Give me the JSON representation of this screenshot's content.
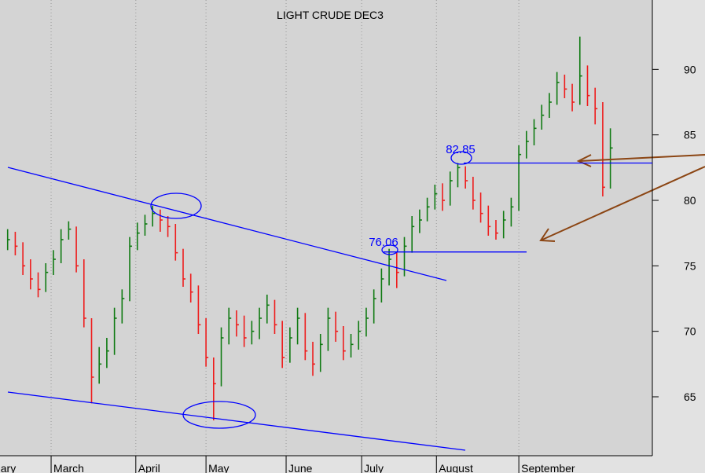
{
  "chart_data": {
    "type": "ohlc",
    "title": "LIGHT CRUDE DEC3",
    "up_color": "#0f7a12",
    "down_color": "#ee1c1c",
    "line_color": "#0000ff",
    "arrow_color": "#8b4513",
    "ylim": [
      60.5,
      95.3
    ],
    "yticks": [
      65,
      70,
      75,
      80,
      85,
      90
    ],
    "xlim": [
      -1,
      84.5
    ],
    "xticks": [
      {
        "value": -5,
        "label": "February"
      },
      {
        "value": 5.7,
        "label": "March"
      },
      {
        "value": 16.8,
        "label": "April"
      },
      {
        "value": 26,
        "label": "May"
      },
      {
        "value": 36.5,
        "label": "June"
      },
      {
        "value": 46.4,
        "label": "July"
      },
      {
        "value": 56.2,
        "label": "August"
      },
      {
        "value": 67,
        "label": "September"
      }
    ],
    "grid": true,
    "closes": [
      77.0,
      76.5,
      75.0,
      74.0,
      73.2,
      74.5,
      75.5,
      77.0,
      77.8,
      75.0,
      71.0,
      66.5,
      67.5,
      68.5,
      71.0,
      72.5,
      76.5,
      77.5,
      78.2,
      79.0,
      78.5,
      78.0,
      76.0,
      74.0,
      73.0,
      70.5,
      68.0,
      66.0,
      69.5,
      71.0,
      70.5,
      69.5,
      70.0,
      71.0,
      72.0,
      70.5,
      68.0,
      69.5,
      71.0,
      68.5,
      67.5,
      69.0,
      71.0,
      70.0,
      68.5,
      69.0,
      70.0,
      71.0,
      72.5,
      74.0,
      75.5,
      74.5,
      76.5,
      78.0,
      78.5,
      79.5,
      80.5,
      80.0,
      81.5,
      82.5,
      81.5,
      80.0,
      79.0,
      78.0,
      77.5,
      78.5,
      79.5,
      83.5,
      84.5,
      85.5,
      86.5,
      87.5,
      89.0,
      88.5,
      87.5,
      89.5,
      88.0,
      87.0,
      81.0,
      84.0
    ],
    "highs": [
      77.8,
      77.6,
      76.8,
      75.5,
      74.5,
      75.2,
      76.2,
      77.8,
      78.4,
      78.0,
      75.5,
      71.0,
      68.8,
      69.5,
      71.8,
      73.2,
      77.2,
      78.3,
      78.9,
      79.6,
      79.3,
      78.8,
      78.2,
      76.3,
      74.4,
      73.5,
      71.0,
      68.0,
      70.3,
      71.8,
      71.6,
      71.2,
      70.8,
      71.8,
      72.8,
      72.4,
      70.8,
      70.3,
      71.8,
      71.4,
      69.2,
      69.8,
      71.8,
      71.5,
      70.4,
      69.8,
      70.8,
      71.8,
      73.2,
      74.8,
      76.3,
      76.1,
      77.2,
      78.8,
      79.3,
      80.2,
      81.2,
      81.3,
      82.2,
      82.85,
      82.6,
      81.8,
      80.6,
      79.6,
      78.5,
      79.2,
      80.2,
      84.2,
      85.3,
      86.2,
      87.3,
      88.2,
      89.8,
      89.6,
      88.9,
      92.5,
      90.3,
      88.6,
      87.5,
      85.5
    ],
    "lows": [
      76.2,
      75.8,
      74.3,
      73.2,
      72.6,
      73.0,
      74.3,
      75.2,
      77.0,
      74.5,
      70.3,
      64.5,
      66.0,
      67.2,
      68.2,
      70.6,
      72.3,
      76.2,
      77.3,
      78.0,
      77.6,
      77.2,
      75.4,
      73.4,
      72.2,
      69.8,
      67.3,
      63.2,
      65.8,
      69.0,
      69.6,
      68.8,
      69.0,
      69.4,
      70.6,
      69.8,
      67.2,
      67.6,
      69.0,
      67.8,
      66.6,
      66.9,
      68.5,
      69.2,
      67.8,
      68.0,
      68.6,
      69.6,
      70.6,
      72.2,
      73.5,
      73.3,
      74.2,
      76.0,
      77.5,
      78.4,
      79.3,
      79.2,
      79.6,
      81.0,
      80.9,
      79.3,
      78.3,
      77.3,
      77.0,
      77.1,
      78.0,
      79.2,
      83.2,
      84.2,
      85.4,
      86.3,
      87.3,
      87.8,
      86.8,
      87.3,
      87.2,
      85.8,
      80.3,
      80.9
    ],
    "annotations": [
      {
        "label": "82.85",
        "value": 82.85
      },
      {
        "label": "76.06",
        "value": 76.06
      }
    ]
  }
}
